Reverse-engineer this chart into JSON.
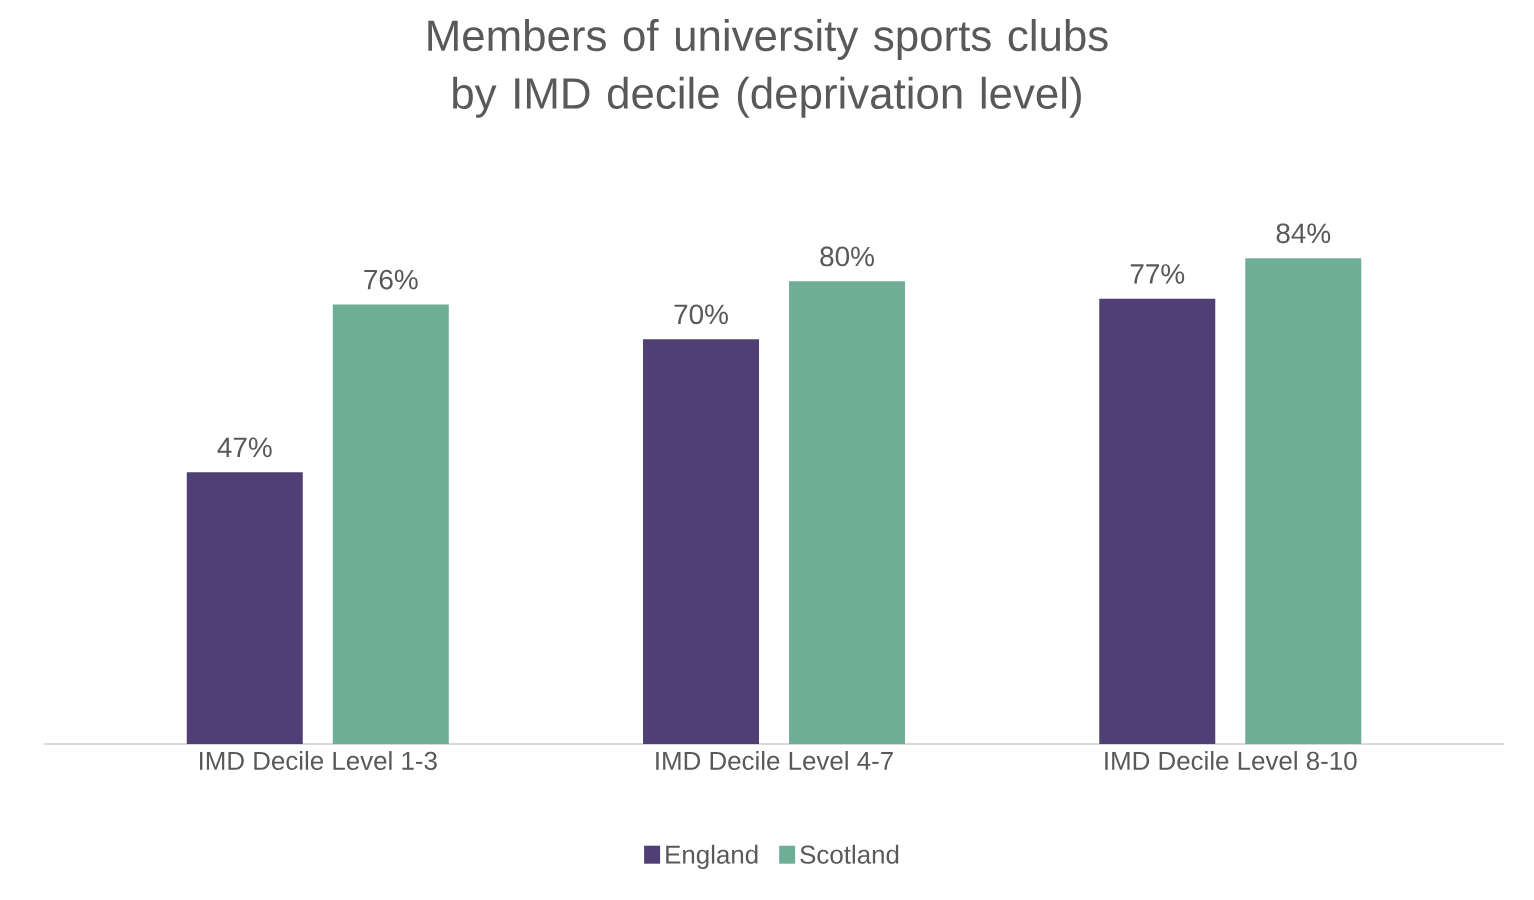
{
  "chart_data": {
    "type": "bar",
    "title": "Members of university sports clubs by IMD decile (deprivation level)",
    "categories": [
      "IMD Decile Level 1-3",
      "IMD Decile Level 4-7",
      "IMD Decile Level 8-10"
    ],
    "series": [
      {
        "name": "England",
        "color": "#4f3f74",
        "values": [
          47,
          70,
          77
        ],
        "value_labels": [
          "47%",
          "70%",
          "77%"
        ]
      },
      {
        "name": "Scotland",
        "color": "#6fae96",
        "values": [
          76,
          80,
          84
        ],
        "value_labels": [
          "76%",
          "80%",
          "84%"
        ]
      }
    ],
    "legend": "bottom"
  }
}
